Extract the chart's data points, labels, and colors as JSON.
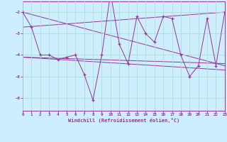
{
  "bg_color": "#cceeff",
  "grid_color": "#aaddcc",
  "line_color": "#993399",
  "xlabel": "Windchill (Refroidissement éolien,°C)",
  "xlim": [
    0,
    23
  ],
  "ylim": [
    -6.6,
    -1.5
  ],
  "yticks": [
    -6,
    -5,
    -4,
    -3,
    -2
  ],
  "xticks": [
    0,
    1,
    2,
    3,
    4,
    5,
    6,
    7,
    8,
    9,
    10,
    11,
    12,
    13,
    14,
    15,
    16,
    17,
    18,
    19,
    20,
    21,
    22,
    23
  ],
  "main_x": [
    0,
    1,
    2,
    3,
    4,
    5,
    6,
    7,
    8,
    9,
    10,
    11,
    12,
    13,
    14,
    15,
    16,
    17,
    18,
    19,
    20,
    21,
    22,
    23
  ],
  "main_y": [
    -2.0,
    -2.7,
    -4.0,
    -4.0,
    -4.2,
    -4.1,
    -4.0,
    -4.9,
    -6.1,
    -4.0,
    -1.1,
    -3.5,
    -4.4,
    -2.2,
    -3.0,
    -3.4,
    -2.2,
    -2.3,
    -4.0,
    -5.0,
    -4.5,
    -2.3,
    -4.5,
    -2.0
  ],
  "trend1_x": [
    0,
    23
  ],
  "trend1_y": [
    -2.7,
    -2.0
  ],
  "trend2_x": [
    0,
    23
  ],
  "trend2_y": [
    -4.1,
    -4.4
  ],
  "trend3_x": [
    0,
    23
  ],
  "trend3_y": [
    -2.0,
    -4.5
  ],
  "trend4_x": [
    0,
    23
  ],
  "trend4_y": [
    -4.1,
    -4.7
  ]
}
